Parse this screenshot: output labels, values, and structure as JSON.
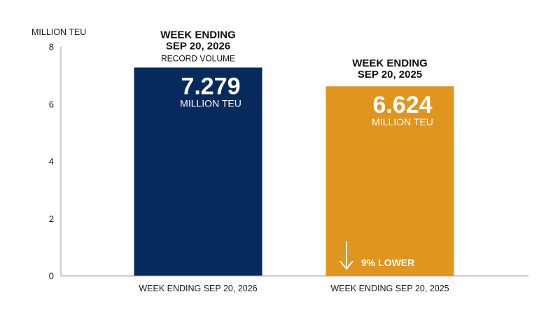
{
  "chart_data": {
    "type": "bar",
    "ylabel": "MILLION TEU",
    "ylim": [
      0,
      8
    ],
    "yticks": [
      0,
      2,
      4,
      6,
      8
    ],
    "grid": false,
    "categories": [
      "WEEK ENDING SEP 20, 2026",
      "WEEK ENDING SEP 20, 2025"
    ],
    "values": [
      7.279,
      6.624
    ],
    "bar_colors": [
      "#062a5c",
      "#e0951f"
    ],
    "bar_headers": [
      [
        "WEEK ENDING",
        "SEP 20, 2026"
      ],
      [
        "WEEK ENDING",
        "SEP 20, 2025"
      ]
    ],
    "bar_subheaders": [
      "RECORD VOLUME",
      ""
    ],
    "value_labels": [
      "7.279",
      "6.624"
    ],
    "unit_labels": [
      "MILLION TEU",
      "MILLION TEU"
    ],
    "annotations": [
      {
        "bar": 1,
        "text": "9% LOWER",
        "icon": "down-arrow-icon"
      }
    ]
  }
}
